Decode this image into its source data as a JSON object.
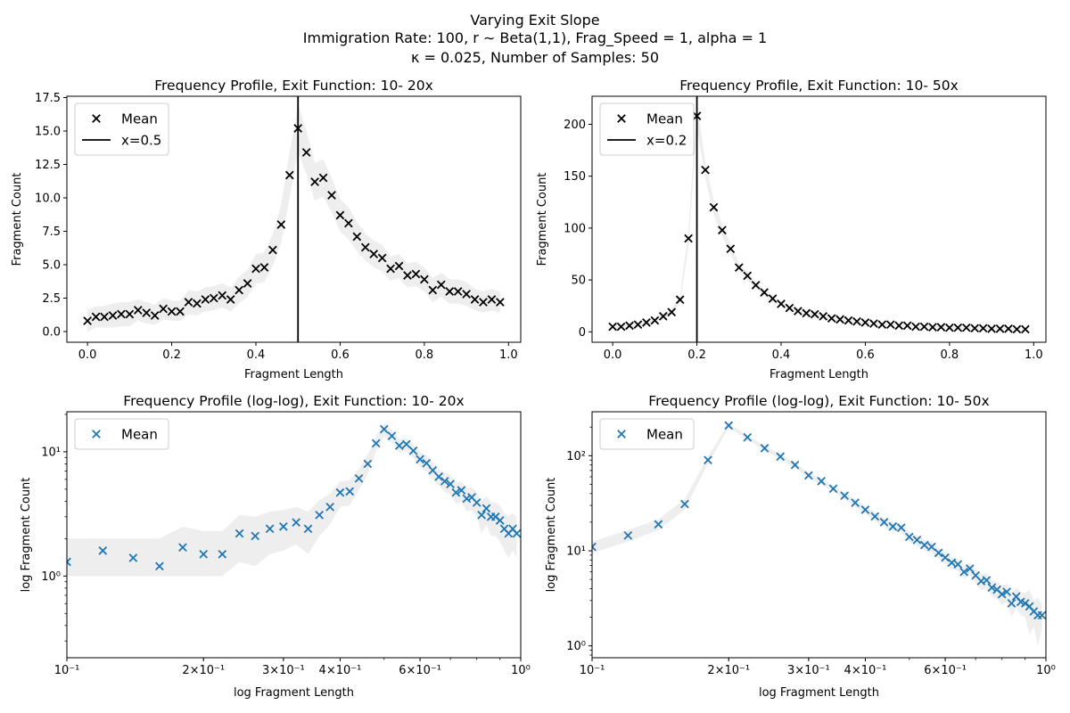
{
  "figure": {
    "title_lines": [
      "Varying Exit Slope",
      "Immigration Rate: 100, r ∼ Beta(1,1), Frag_Speed = 1, alpha =  1",
      "κ =  0.025, Number of Samples: 50"
    ]
  },
  "chart_data": [
    {
      "type": "scatter",
      "title": "Frequency Profile, Exit Function: 10- 20x",
      "xlabel": "Fragment Length",
      "ylabel": "Fragment Count",
      "xscale": "linear",
      "yscale": "linear",
      "xlim": [
        -0.049,
        1.029
      ],
      "ylim": [
        -0.8,
        17.6
      ],
      "xticks": [
        0.0,
        0.2,
        0.4,
        0.6,
        0.8,
        1.0
      ],
      "xtick_labels": [
        "0.0",
        "0.2",
        "0.4",
        "0.6",
        "0.8",
        "1.0"
      ],
      "yticks": [
        0.0,
        2.5,
        5.0,
        7.5,
        10.0,
        12.5,
        15.0,
        17.5
      ],
      "ytick_labels": [
        "0.0",
        "2.5",
        "5.0",
        "7.5",
        "10.0",
        "12.5",
        "15.0",
        "17.5"
      ],
      "marker_color": "#000000",
      "band_color": "#d9d9d9",
      "legend": {
        "position": "upper-left",
        "entries": [
          {
            "label": "Mean",
            "kind": "marker"
          },
          {
            "label": "x=0.5",
            "kind": "line"
          }
        ]
      },
      "vline": {
        "x": 0.5
      },
      "series": [
        {
          "name": "Mean",
          "x": [
            0.0,
            0.02,
            0.04,
            0.06,
            0.08,
            0.1,
            0.12,
            0.14,
            0.16,
            0.18,
            0.2,
            0.22,
            0.24,
            0.26,
            0.28,
            0.3,
            0.32,
            0.34,
            0.36,
            0.38,
            0.4,
            0.42,
            0.44,
            0.46,
            0.48,
            0.5,
            0.52,
            0.54,
            0.56,
            0.58,
            0.6,
            0.62,
            0.64,
            0.66,
            0.68,
            0.7,
            0.72,
            0.74,
            0.76,
            0.78,
            0.8,
            0.82,
            0.84,
            0.86,
            0.88,
            0.9,
            0.92,
            0.94,
            0.96,
            0.98
          ],
          "y": [
            0.8,
            1.1,
            1.1,
            1.2,
            1.3,
            1.3,
            1.6,
            1.4,
            1.2,
            1.7,
            1.5,
            1.5,
            2.2,
            2.1,
            2.4,
            2.5,
            2.7,
            2.4,
            3.1,
            3.6,
            4.7,
            4.8,
            6.1,
            8.0,
            11.7,
            15.2,
            13.4,
            11.2,
            11.5,
            10.2,
            8.7,
            8.1,
            7.1,
            6.3,
            5.8,
            5.5,
            4.7,
            4.9,
            4.2,
            4.3,
            3.9,
            3.1,
            3.5,
            3.0,
            3.0,
            2.8,
            2.4,
            2.2,
            2.4,
            2.2
          ],
          "lower": [
            0.0,
            0.3,
            0.3,
            0.3,
            0.4,
            0.4,
            0.8,
            0.6,
            0.5,
            0.9,
            0.8,
            0.8,
            1.3,
            1.2,
            1.5,
            1.6,
            1.8,
            1.5,
            2.1,
            2.6,
            3.6,
            3.7,
            4.9,
            6.6,
            10.0,
            13.4,
            11.8,
            9.8,
            10.1,
            8.9,
            7.5,
            6.9,
            6.0,
            5.3,
            4.8,
            4.5,
            3.8,
            4.0,
            3.3,
            3.4,
            3.0,
            2.2,
            2.6,
            2.1,
            2.1,
            1.9,
            1.6,
            1.4,
            1.6,
            1.4
          ],
          "upper": [
            1.6,
            1.9,
            1.9,
            2.1,
            2.2,
            2.2,
            2.4,
            2.2,
            2.0,
            2.5,
            2.3,
            2.3,
            3.1,
            3.0,
            3.3,
            3.4,
            3.6,
            3.3,
            4.1,
            4.6,
            5.8,
            5.9,
            7.3,
            9.5,
            13.4,
            17.0,
            15.0,
            12.6,
            12.9,
            11.5,
            9.9,
            9.3,
            8.2,
            7.3,
            6.8,
            6.5,
            5.6,
            5.8,
            5.1,
            5.2,
            4.8,
            4.0,
            4.4,
            3.9,
            3.9,
            3.7,
            3.2,
            3.0,
            3.2,
            3.0
          ]
        }
      ]
    },
    {
      "type": "scatter",
      "title": "Frequency Profile, Exit Function: 10- 50x",
      "xlabel": "Fragment Length",
      "ylabel": "Fragment Count",
      "xscale": "linear",
      "yscale": "linear",
      "xlim": [
        -0.049,
        1.029
      ],
      "ylim": [
        -10,
        227
      ],
      "xticks": [
        0.0,
        0.2,
        0.4,
        0.6,
        0.8,
        1.0
      ],
      "xtick_labels": [
        "0.0",
        "0.2",
        "0.4",
        "0.6",
        "0.8",
        "1.0"
      ],
      "yticks": [
        0,
        50,
        100,
        150,
        200
      ],
      "ytick_labels": [
        "0",
        "50",
        "100",
        "150",
        "200"
      ],
      "marker_color": "#000000",
      "band_color": "#d9d9d9",
      "legend": {
        "position": "upper-left",
        "entries": [
          {
            "label": "Mean",
            "kind": "marker"
          },
          {
            "label": "x=0.2",
            "kind": "line"
          }
        ]
      },
      "vline": {
        "x": 0.2
      },
      "series": [
        {
          "name": "Mean",
          "x": [
            0.0,
            0.02,
            0.04,
            0.06,
            0.08,
            0.1,
            0.12,
            0.14,
            0.16,
            0.18,
            0.2,
            0.22,
            0.24,
            0.26,
            0.28,
            0.3,
            0.32,
            0.34,
            0.36,
            0.38,
            0.4,
            0.42,
            0.44,
            0.46,
            0.48,
            0.5,
            0.52,
            0.54,
            0.56,
            0.58,
            0.6,
            0.62,
            0.64,
            0.66,
            0.68,
            0.7,
            0.72,
            0.74,
            0.76,
            0.78,
            0.8,
            0.82,
            0.84,
            0.86,
            0.88,
            0.9,
            0.92,
            0.94,
            0.96,
            0.98
          ],
          "y": [
            5,
            5,
            6,
            7,
            9,
            11,
            15,
            19,
            31,
            90,
            208,
            156,
            120,
            98,
            80,
            62,
            54,
            45,
            38,
            32,
            27,
            23,
            20,
            18,
            17,
            15,
            13,
            12,
            11,
            10,
            9,
            8,
            7,
            7,
            6,
            6,
            5,
            5,
            4.5,
            4.5,
            4,
            4,
            4,
            3.5,
            3.5,
            3,
            3,
            3,
            2.5,
            2.5
          ],
          "lower": [
            3,
            3,
            4,
            5,
            7,
            9,
            12,
            16,
            27,
            82,
            196,
            148,
            113,
            92,
            75,
            58,
            50,
            42,
            35,
            29,
            24,
            20,
            18,
            16,
            15,
            13,
            11,
            10,
            9.5,
            8.5,
            7.5,
            6.8,
            6,
            6,
            5,
            5,
            4,
            4,
            3.5,
            3.5,
            3,
            3,
            3,
            2.5,
            2.5,
            2,
            2,
            2,
            1.5,
            1.5
          ],
          "upper": [
            7,
            7,
            8,
            9,
            11,
            13,
            18,
            22,
            35,
            98,
            220,
            164,
            127,
            104,
            85,
            66,
            58,
            48,
            41,
            35,
            30,
            26,
            22,
            20,
            19,
            17,
            15,
            14,
            12.5,
            11.5,
            10.5,
            9.2,
            8,
            8,
            7,
            7,
            6,
            6,
            5.5,
            5.5,
            5,
            5,
            5,
            4.5,
            4.5,
            4,
            4,
            4,
            3.5,
            3.5
          ]
        }
      ]
    },
    {
      "type": "scatter",
      "title": "Frequency Profile (log-log), Exit Function: 10- 20x",
      "xlabel": "log Fragment Length",
      "ylabel": "log Fragment Count",
      "xscale": "log",
      "yscale": "log",
      "xlim": [
        0.1,
        1.0
      ],
      "ylim": [
        0.22,
        21
      ],
      "xticks": [
        0.1,
        0.2,
        0.3,
        0.4,
        0.6,
        1.0
      ],
      "xtick_labels": [
        "10⁻¹",
        "2×10⁻¹",
        "3×10⁻¹",
        "4×10⁻¹",
        "6×10⁻¹",
        "10⁰"
      ],
      "yticks": [
        1,
        10
      ],
      "ytick_labels": [
        "10⁰",
        "10¹"
      ],
      "marker_color": "#1f77b4",
      "band_color": "#d9d9d9",
      "legend": {
        "position": "upper-left",
        "entries": [
          {
            "label": "Mean",
            "kind": "marker"
          }
        ]
      },
      "series": [
        {
          "name": "Mean",
          "x": [
            0.1,
            0.12,
            0.14,
            0.16,
            0.18,
            0.2,
            0.22,
            0.24,
            0.26,
            0.28,
            0.3,
            0.32,
            0.34,
            0.36,
            0.38,
            0.4,
            0.42,
            0.44,
            0.46,
            0.48,
            0.5,
            0.52,
            0.54,
            0.56,
            0.58,
            0.6,
            0.62,
            0.64,
            0.66,
            0.68,
            0.7,
            0.72,
            0.74,
            0.76,
            0.78,
            0.8,
            0.82,
            0.84,
            0.86,
            0.88,
            0.9,
            0.92,
            0.94,
            0.96,
            0.98
          ],
          "y": [
            1.3,
            1.6,
            1.4,
            1.2,
            1.7,
            1.5,
            1.5,
            2.2,
            2.1,
            2.4,
            2.5,
            2.7,
            2.4,
            3.1,
            3.6,
            4.7,
            4.8,
            6.1,
            8.0,
            11.7,
            15.2,
            13.4,
            11.2,
            11.5,
            10.2,
            8.7,
            8.1,
            7.1,
            6.3,
            5.8,
            5.5,
            4.7,
            4.9,
            4.2,
            4.3,
            3.9,
            3.1,
            3.5,
            3.0,
            3.0,
            2.8,
            2.4,
            2.2,
            2.4,
            2.2
          ],
          "lower": [
            1.0,
            1.0,
            1.0,
            1.0,
            1.0,
            1.0,
            1.0,
            1.3,
            1.2,
            1.5,
            1.6,
            1.8,
            1.5,
            2.1,
            2.6,
            3.6,
            3.7,
            4.9,
            6.6,
            10.0,
            13.4,
            11.8,
            9.8,
            10.1,
            8.9,
            7.5,
            6.9,
            6.0,
            5.3,
            4.8,
            4.5,
            3.8,
            4.0,
            3.3,
            3.4,
            3.0,
            2.2,
            2.6,
            2.1,
            2.1,
            1.9,
            1.6,
            1.4,
            1.6,
            1.4
          ],
          "upper": [
            2.0,
            2.0,
            2.0,
            2.0,
            2.5,
            2.3,
            2.3,
            3.1,
            3.0,
            3.3,
            3.4,
            3.6,
            3.3,
            4.1,
            4.6,
            5.8,
            5.9,
            7.3,
            9.5,
            13.4,
            17.0,
            15.0,
            12.6,
            12.9,
            11.5,
            9.9,
            9.3,
            8.2,
            7.3,
            6.8,
            6.5,
            5.6,
            5.8,
            5.1,
            5.2,
            4.8,
            4.0,
            4.4,
            3.9,
            3.9,
            3.7,
            3.2,
            3.0,
            3.2,
            3.0
          ]
        }
      ]
    },
    {
      "type": "scatter",
      "title": "Frequency Profile (log-log), Exit Function: 10- 50x",
      "xlabel": "log Fragment Length",
      "ylabel": "log Fragment Count",
      "xscale": "log",
      "yscale": "log",
      "xlim": [
        0.1,
        1.0
      ],
      "ylim": [
        0.75,
        290
      ],
      "xticks": [
        0.1,
        0.2,
        0.3,
        0.4,
        0.6,
        1.0
      ],
      "xtick_labels": [
        "10⁻¹",
        "2×10⁻¹",
        "3×10⁻¹",
        "4×10⁻¹",
        "6×10⁻¹",
        "10⁰"
      ],
      "yticks": [
        1,
        10,
        100
      ],
      "ytick_labels": [
        "10⁰",
        "10¹",
        "10²"
      ],
      "marker_color": "#1f77b4",
      "band_color": "#d9d9d9",
      "legend": {
        "position": "upper-left",
        "entries": [
          {
            "label": "Mean",
            "kind": "marker"
          }
        ]
      },
      "series": [
        {
          "name": "Mean",
          "x": [
            0.1,
            0.12,
            0.14,
            0.16,
            0.18,
            0.2,
            0.22,
            0.24,
            0.26,
            0.28,
            0.3,
            0.32,
            0.34,
            0.36,
            0.38,
            0.4,
            0.42,
            0.44,
            0.46,
            0.48,
            0.5,
            0.52,
            0.54,
            0.56,
            0.58,
            0.6,
            0.62,
            0.64,
            0.66,
            0.68,
            0.7,
            0.72,
            0.74,
            0.76,
            0.78,
            0.8,
            0.82,
            0.84,
            0.86,
            0.88,
            0.9,
            0.92,
            0.94,
            0.96,
            0.98
          ],
          "y": [
            11,
            14.5,
            19,
            31,
            90,
            208,
            156,
            120,
            98,
            80,
            62,
            54,
            45,
            38,
            32,
            27,
            23,
            20,
            18,
            17.5,
            14,
            13,
            11.5,
            11,
            9.5,
            8.5,
            7.5,
            7.2,
            6,
            6.5,
            5.5,
            4.8,
            4.9,
            4.1,
            3.9,
            3.5,
            3.7,
            2.8,
            3.3,
            2.9,
            2.8,
            2.6,
            2.3,
            2.1,
            2.1
          ],
          "lower": [
            9.5,
            12.5,
            16.5,
            27,
            82,
            196,
            148,
            113,
            92,
            75,
            58,
            50,
            42,
            35,
            29,
            24.5,
            20.5,
            18,
            16,
            15.5,
            12.3,
            11.4,
            10,
            9.5,
            8.2,
            7.3,
            6.4,
            6.2,
            5.1,
            5.5,
            4.6,
            3.9,
            4,
            3.3,
            3.1,
            2.7,
            2.9,
            2.0,
            2.5,
            2.1,
            2.0,
            1.3,
            1.6,
            1.0,
            1.5
          ],
          "upper": [
            12.5,
            16.5,
            21.5,
            35,
            98,
            220,
            164,
            127,
            104,
            85,
            66,
            58,
            48,
            41,
            35,
            29.5,
            25.5,
            22,
            20,
            19.5,
            15.7,
            14.6,
            13,
            12.5,
            10.8,
            9.7,
            8.6,
            8.2,
            6.9,
            7.5,
            6.4,
            5.7,
            5.8,
            4.9,
            4.7,
            4.3,
            4.5,
            3.6,
            4.1,
            3.7,
            3.6,
            3.9,
            3.0,
            3.2,
            2.7
          ]
        }
      ]
    }
  ]
}
